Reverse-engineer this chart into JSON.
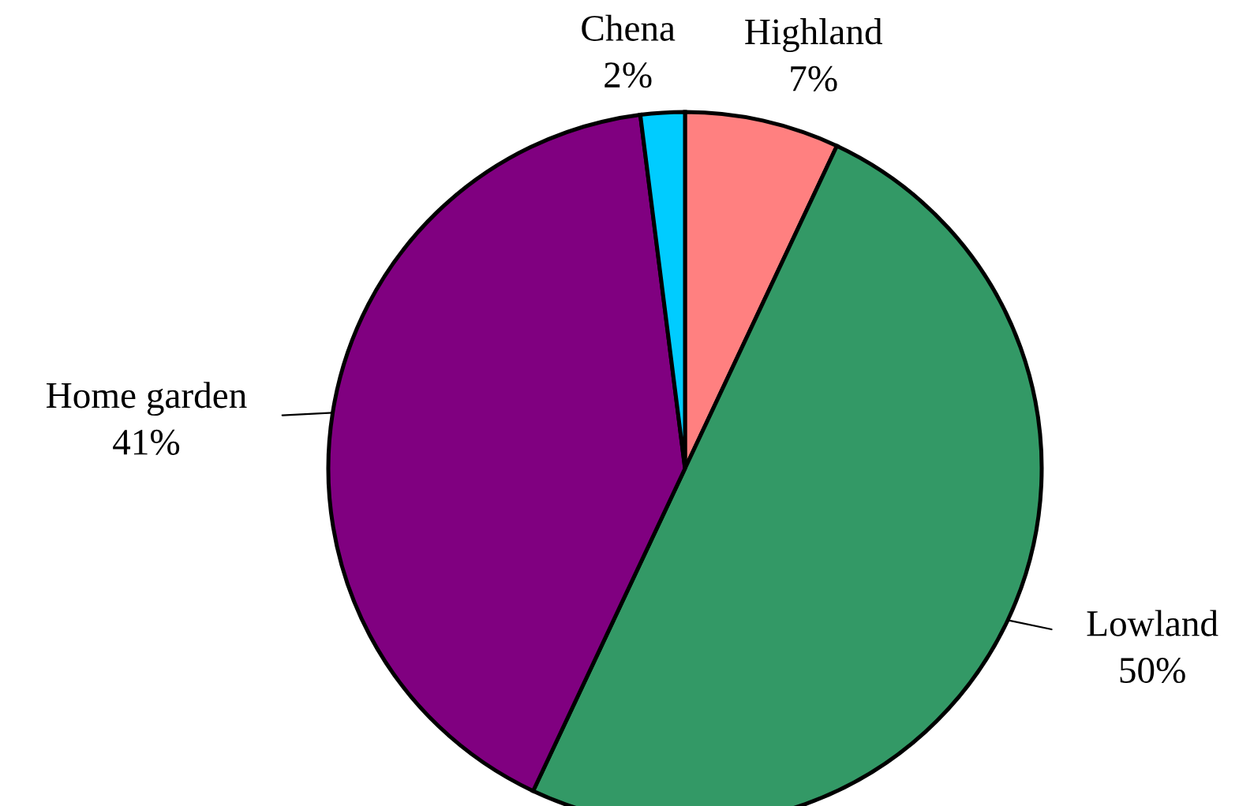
{
  "chart_data": {
    "type": "pie",
    "categories": [
      "Highland",
      "Lowland",
      "Home garden",
      "Chena"
    ],
    "values": [
      7,
      50,
      41,
      2
    ],
    "colors": [
      "#ff8080",
      "#339966",
      "#800080",
      "#00ccff"
    ],
    "value_labels": [
      "7%",
      "50%",
      "41%",
      "2%"
    ],
    "legend": false
  }
}
